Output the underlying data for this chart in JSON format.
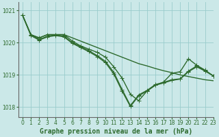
{
  "xlabel": "Graphe pression niveau de la mer (hPa)",
  "background_color": "#cbe8e8",
  "grid_color": "#99cccc",
  "line_color": "#2d6a2d",
  "ylim": [
    1017.7,
    1021.25
  ],
  "xlim": [
    -0.5,
    23
  ],
  "yticks": [
    1018,
    1019,
    1020,
    1021
  ],
  "xticks": [
    0,
    1,
    2,
    3,
    4,
    5,
    6,
    7,
    8,
    9,
    10,
    11,
    12,
    13,
    14,
    15,
    16,
    17,
    18,
    19,
    20,
    21,
    22,
    23
  ],
  "series": [
    {
      "x": [
        0,
        1,
        2,
        3,
        4,
        5,
        6,
        7,
        8,
        9,
        10,
        11,
        12,
        13,
        14,
        15,
        16,
        17,
        18,
        19,
        20,
        21,
        22,
        23
      ],
      "y": [
        1020.85,
        1020.25,
        1020.15,
        1020.25,
        1020.25,
        1020.25,
        1020.15,
        1020.05,
        1019.95,
        1019.85,
        1019.75,
        1019.65,
        1019.55,
        1019.45,
        1019.35,
        1019.28,
        1019.2,
        1019.13,
        1019.07,
        1019.0,
        1018.95,
        1018.9,
        1018.85,
        1018.82
      ],
      "marker": false,
      "lw": 1.0
    },
    {
      "x": [
        0,
        1,
        2,
        3,
        4,
        5,
        6,
        7,
        8,
        9,
        10,
        11,
        12,
        13,
        14,
        15,
        16,
        17,
        18,
        19,
        20,
        21,
        22,
        23
      ],
      "y": [
        1020.85,
        1020.25,
        1020.15,
        1020.25,
        1020.25,
        1020.25,
        1020.05,
        1019.9,
        1019.8,
        1019.7,
        1019.55,
        1019.25,
        1018.9,
        1018.4,
        1018.2,
        1018.5,
        1018.68,
        1018.78,
        1019.05,
        1019.1,
        1019.5,
        1019.3,
        1019.15,
        1018.97
      ],
      "marker": true,
      "lw": 1.0
    },
    {
      "x": [
        0,
        1,
        2,
        3,
        4,
        5,
        6,
        7,
        8,
        9,
        10,
        11,
        12,
        13,
        14,
        15,
        16,
        17,
        18,
        19,
        20,
        21,
        22,
        23
      ],
      "y": [
        1020.85,
        1020.25,
        1020.1,
        1020.2,
        1020.25,
        1020.2,
        1020.0,
        1019.88,
        1019.75,
        1019.6,
        1019.42,
        1019.08,
        1018.55,
        1018.05,
        1018.38,
        1018.52,
        1018.7,
        1018.77,
        1018.85,
        1018.88,
        1019.12,
        1019.28,
        1019.13,
        1018.97
      ],
      "marker": true,
      "lw": 1.0
    },
    {
      "x": [
        0,
        1,
        2,
        3,
        4,
        5,
        6,
        7,
        8,
        9,
        10,
        11,
        12,
        13,
        14,
        15,
        16,
        17,
        18,
        19,
        20,
        21,
        22,
        23
      ],
      "y": [
        1020.85,
        1020.22,
        1020.08,
        1020.18,
        1020.22,
        1020.18,
        1019.98,
        1019.85,
        1019.72,
        1019.57,
        1019.38,
        1019.03,
        1018.5,
        1018.02,
        1018.35,
        1018.5,
        1018.68,
        1018.75,
        1018.83,
        1018.87,
        1019.1,
        1019.25,
        1019.12,
        1018.97
      ],
      "marker": true,
      "lw": 1.0
    }
  ],
  "marker_style": "+",
  "marker_size": 4,
  "tick_label_fontsize": 5.5,
  "xlabel_fontsize": 7.0,
  "tick_color": "#2d6a2d",
  "spine_color": "#666666"
}
